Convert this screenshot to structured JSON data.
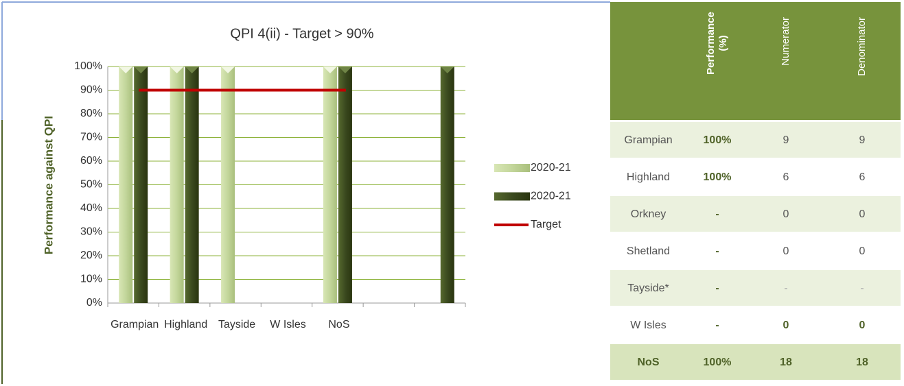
{
  "chart_data": {
    "type": "bar",
    "title": "QPI 4(ii) - Target > 90%",
    "y_label": "Performance against QPI",
    "categories": [
      "Grampian",
      "Highland",
      "Tayside",
      "W Isles",
      "NoS",
      null,
      null
    ],
    "series": [
      {
        "name": "2020-21",
        "color": "#c3d69b",
        "values": [
          100,
          100,
          100,
          null,
          100,
          null,
          null
        ]
      },
      {
        "name": "2020-21",
        "color": "#3b4a1f",
        "values": [
          100,
          100,
          null,
          null,
          100,
          null,
          100
        ]
      },
      {
        "name": "Target",
        "type": "line",
        "color": "#c00000",
        "values": [
          90,
          90,
          90,
          90,
          90,
          null,
          null
        ]
      }
    ],
    "ylim": [
      0,
      100
    ],
    "yticks": [
      {
        "value": 0,
        "label": "0%"
      },
      {
        "value": 10,
        "label": "10%"
      },
      {
        "value": 20,
        "label": "20%"
      },
      {
        "value": 30,
        "label": "30%"
      },
      {
        "value": 40,
        "label": "40%"
      },
      {
        "value": 50,
        "label": "50%"
      },
      {
        "value": 60,
        "label": "60%"
      },
      {
        "value": 70,
        "label": "70%"
      },
      {
        "value": 80,
        "label": "80%"
      },
      {
        "value": 90,
        "label": "90%"
      },
      {
        "value": 100,
        "label": "100%"
      }
    ],
    "grid": true,
    "legend": "right"
  },
  "table": {
    "headers": [
      "Performance (%)",
      "Numerator",
      "Denominator"
    ],
    "rows": [
      [
        "Grampian",
        "100%",
        "9",
        "9"
      ],
      [
        "Highland",
        "100%",
        "6",
        "6"
      ],
      [
        "Orkney",
        "-",
        "0",
        "0"
      ],
      [
        "Shetland",
        "-",
        "0",
        "0"
      ],
      [
        "Tayside*",
        "-",
        "-",
        "-"
      ],
      [
        "W Isles",
        "-",
        "0",
        "0"
      ],
      [
        "NoS",
        "100%",
        "18",
        "18"
      ]
    ]
  }
}
